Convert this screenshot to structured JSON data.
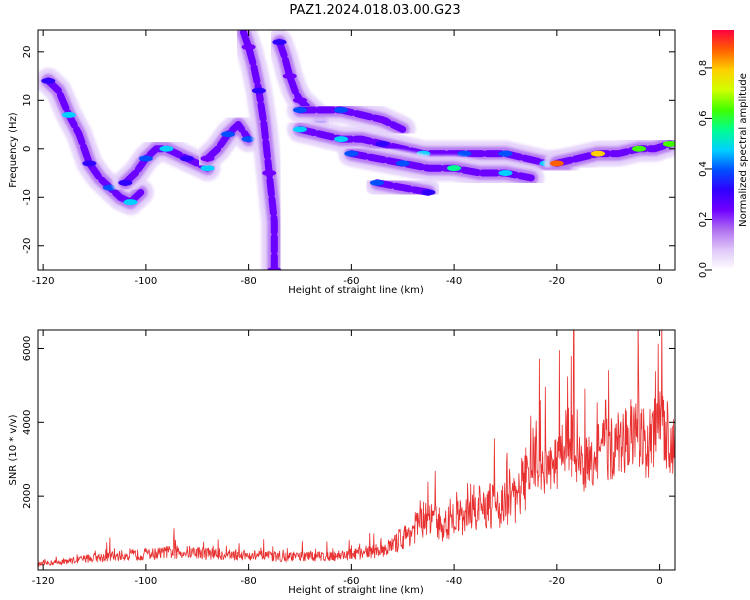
{
  "figure": {
    "title": "PAZ1.2024.018.03.00.G23"
  },
  "chart_data": [
    {
      "type": "heatmap",
      "xlabel": "Height of straight line (km)",
      "ylabel": "Frequency (Hz)",
      "xlim": [
        -121,
        3
      ],
      "ylim": [
        -25,
        24.5
      ],
      "xticks": [
        -120,
        -100,
        -80,
        -60,
        -40,
        -20,
        0
      ],
      "yticks": [
        -20,
        -10,
        0,
        10,
        20
      ],
      "colorbar": {
        "label": "Normalized spectral amplitude",
        "range": [
          0,
          0.95
        ],
        "ticks": [
          0.0,
          0.2,
          0.4,
          0.6,
          0.8
        ],
        "colormap": [
          "#ffffff",
          "#e0c8f8",
          "#b070f0",
          "#7000ff",
          "#3000ff",
          "#0050ff",
          "#00d0ff",
          "#00ff90",
          "#40ff00",
          "#d0ff00",
          "#ffd000",
          "#ff6000",
          "#ff0040"
        ]
      },
      "grid": false,
      "features": [
        {
          "x": [
            -119,
            -117,
            -115,
            -113,
            -111,
            -109,
            -107,
            -105,
            -103,
            -101
          ],
          "y": [
            14,
            12,
            7,
            3,
            -3,
            -6,
            -8,
            -10,
            -11,
            -9
          ],
          "amplitude": 0.45
        },
        {
          "x": [
            -104,
            -102,
            -100,
            -98,
            -96,
            -94,
            -92,
            -90,
            -88
          ],
          "y": [
            -7,
            -5,
            -2,
            0,
            0,
            -1,
            -2,
            -3,
            -4
          ],
          "amplitude": 0.5
        },
        {
          "x": [
            -88,
            -86,
            -84,
            -82,
            -80
          ],
          "y": [
            -2,
            0,
            3,
            5,
            2
          ],
          "amplitude": 0.45
        },
        {
          "x": [
            -75,
            -75,
            -76,
            -77,
            -78,
            -79,
            -80,
            -81
          ],
          "y": [
            -25,
            -15,
            -5,
            5,
            12,
            17,
            21,
            24
          ],
          "amplitude": 0.3
        },
        {
          "x": [
            -74,
            -73,
            -72,
            -71,
            -70,
            -68,
            -66
          ],
          "y": [
            22,
            19,
            15,
            12,
            10,
            8,
            6
          ],
          "amplitude": 0.35
        },
        {
          "x": [
            -70,
            -66,
            -62,
            -58,
            -54,
            -50
          ],
          "y": [
            8,
            8,
            8,
            7,
            6,
            4
          ],
          "amplitude": 0.4
        },
        {
          "x": [
            -70,
            -66,
            -62,
            -58,
            -54,
            -50,
            -46,
            -42,
            -38,
            -34,
            -30,
            -26,
            -22,
            -18
          ],
          "y": [
            4,
            3,
            2,
            2,
            1,
            0,
            -1,
            -1,
            -1,
            -1,
            -1,
            -2,
            -3,
            -3
          ],
          "amplitude": 0.5
        },
        {
          "x": [
            -60,
            -55,
            -50,
            -45,
            -40,
            -35,
            -30,
            -25
          ],
          "y": [
            -1,
            -2,
            -3,
            -4,
            -4,
            -5,
            -5,
            -6
          ],
          "amplitude": 0.55
        },
        {
          "x": [
            -55,
            -50,
            -45
          ],
          "y": [
            -7,
            -8,
            -9
          ],
          "amplitude": 0.4
        },
        {
          "x": [
            -20,
            -16,
            -12,
            -8,
            -4,
            -1,
            2
          ],
          "y": [
            -3,
            -2,
            -1,
            -1,
            0,
            0,
            1
          ],
          "amplitude": 0.9
        }
      ]
    },
    {
      "type": "line",
      "xlabel": "Height of straight line (km)",
      "ylabel": "SNR (10 * v/v)",
      "xlim": [
        -121,
        3
      ],
      "ylim": [
        0,
        6500
      ],
      "xticks": [
        -120,
        -100,
        -80,
        -60,
        -40,
        -20,
        0
      ],
      "yticks": [
        2000,
        4000,
        6000
      ],
      "grid": false,
      "series": [
        {
          "color": "#e83030",
          "x": [
            -121,
            -115,
            -110,
            -105,
            -100,
            -95,
            -90,
            -85,
            -80,
            -75,
            -70,
            -65,
            -60,
            -55,
            -52,
            -50,
            -48,
            -46,
            -44,
            -42,
            -40,
            -38,
            -36,
            -34,
            -32,
            -30,
            -28,
            -26,
            -24,
            -22,
            -20,
            -18,
            -16,
            -14,
            -12,
            -10,
            -8,
            -6,
            -4,
            -2,
            0,
            2,
            3
          ],
          "y": [
            150,
            250,
            330,
            390,
            420,
            480,
            480,
            420,
            400,
            360,
            360,
            380,
            420,
            520,
            650,
            850,
            1100,
            1350,
            1300,
            1200,
            1350,
            1500,
            1700,
            1650,
            1750,
            1800,
            1900,
            2500,
            3000,
            2600,
            3000,
            3600,
            3000,
            2800,
            3300,
            3200,
            3400,
            3700,
            3500,
            3400,
            3900,
            3600,
            3400
          ],
          "peaks": [
            [
              -16.7,
              6500
            ],
            [
              -24,
              4050
            ],
            [
              -10.5,
              4600
            ],
            [
              -0.5,
              4500
            ],
            [
              -46,
              1850
            ],
            [
              -94.5,
              1130
            ],
            [
              -107,
              880
            ]
          ]
        }
      ]
    }
  ]
}
